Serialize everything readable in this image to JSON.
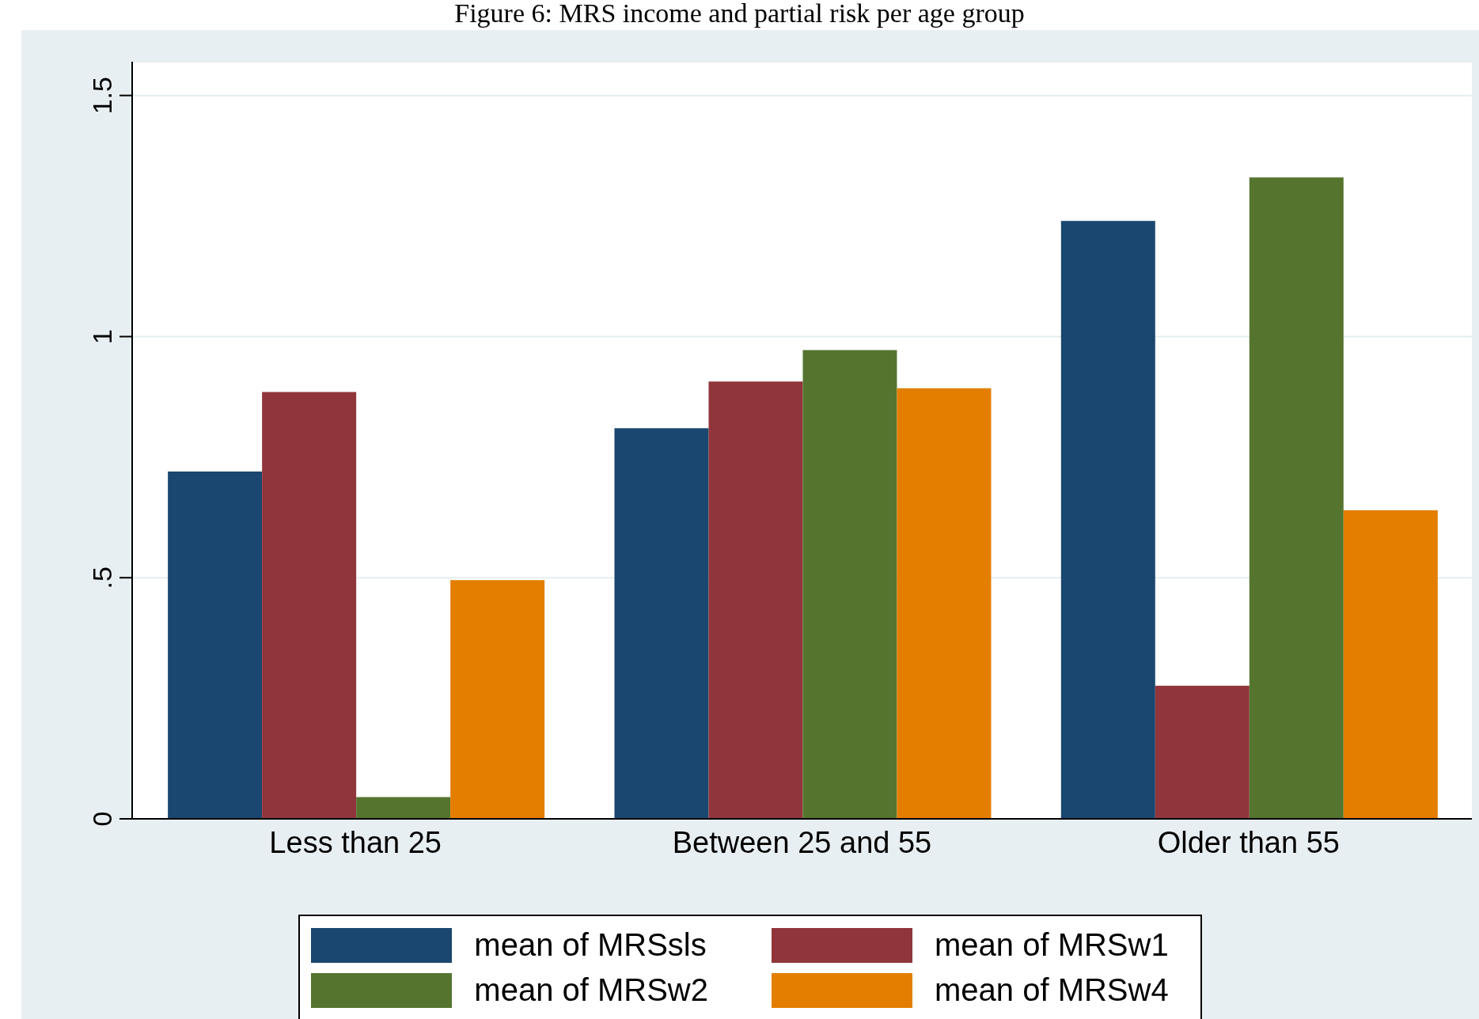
{
  "chart_data": {
    "type": "bar",
    "title": "Figure 6: MRS income and partial risk per age group",
    "categories": [
      "Less than 25",
      "Between 25 and 55",
      "Older than 55"
    ],
    "series": [
      {
        "name": "mean of MRSsls",
        "color": "#1a476f",
        "values": [
          0.72,
          0.81,
          1.24
        ]
      },
      {
        "name": "mean of MRSw1",
        "color": "#90353b",
        "values": [
          0.885,
          0.907,
          0.276
        ]
      },
      {
        "name": "mean of MRSw2",
        "color": "#55752f",
        "values": [
          0.045,
          0.972,
          1.33
        ]
      },
      {
        "name": "mean of MRSw4",
        "color": "#e37e00",
        "values": [
          0.495,
          0.893,
          0.64
        ]
      }
    ],
    "ylim": [
      0,
      1.57
    ],
    "yticks": [
      {
        "value": 0,
        "label": "0"
      },
      {
        "value": 0.5,
        "label": ".5"
      },
      {
        "value": 1,
        "label": "1"
      },
      {
        "value": 1.5,
        "label": "1.5"
      }
    ],
    "grid": "y",
    "legend": "bottom"
  }
}
